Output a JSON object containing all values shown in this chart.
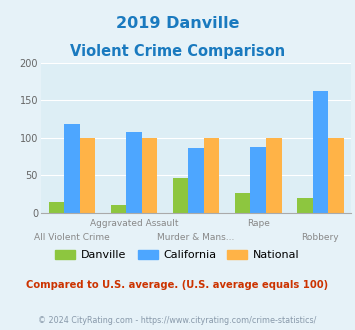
{
  "title_line1": "2019 Danville",
  "title_line2": "Violent Crime Comparison",
  "title_color": "#1a7abf",
  "categories": [
    "All Violent Crime",
    "Aggravated Assault",
    "Murder & Mans...",
    "Rape",
    "Robbery"
  ],
  "cat_row1": [
    "",
    "Aggravated Assault",
    "",
    "Rape",
    ""
  ],
  "cat_row2": [
    "All Violent Crime",
    "",
    "Murder & Mans...",
    "",
    "Robbery"
  ],
  "danville": [
    14,
    10,
    46,
    27,
    20
  ],
  "california": [
    118,
    108,
    87,
    88,
    162
  ],
  "national": [
    100,
    100,
    100,
    100,
    100
  ],
  "danville_color": "#8dc63f",
  "california_color": "#4da6ff",
  "national_color": "#ffb347",
  "ylim": [
    0,
    200
  ],
  "yticks": [
    0,
    50,
    100,
    150,
    200
  ],
  "bg_color": "#e6f2f8",
  "plot_bg": "#ddeef5",
  "note": "Compared to U.S. average. (U.S. average equals 100)",
  "note_color": "#cc3300",
  "footer": "© 2024 CityRating.com - https://www.cityrating.com/crime-statistics/",
  "footer_color": "#8899aa",
  "legend_labels": [
    "Danville",
    "California",
    "National"
  ],
  "bar_width": 0.25
}
